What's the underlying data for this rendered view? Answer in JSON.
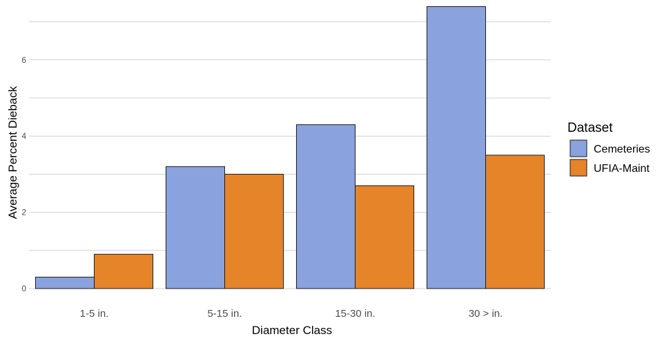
{
  "chart_data": {
    "type": "bar",
    "categories": [
      "1-5 in.",
      "5-15 in.",
      "15-30 in.",
      "30 > in."
    ],
    "series": [
      {
        "name": "Cemeteries",
        "values": [
          0.3,
          3.2,
          4.3,
          7.4
        ],
        "color": "#8AA2DE"
      },
      {
        "name": "UFIA-Maint",
        "values": [
          0.9,
          3.0,
          2.7,
          3.5
        ],
        "color": "#E6842A"
      }
    ],
    "title": "",
    "xlabel": "Diameter Class",
    "ylabel": "Average Percent Dieback",
    "ylim": [
      0,
      7.5
    ],
    "yticks": [
      0,
      2,
      4,
      6
    ],
    "grid": true,
    "legend": {
      "title": "Dataset",
      "position": "right"
    }
  }
}
